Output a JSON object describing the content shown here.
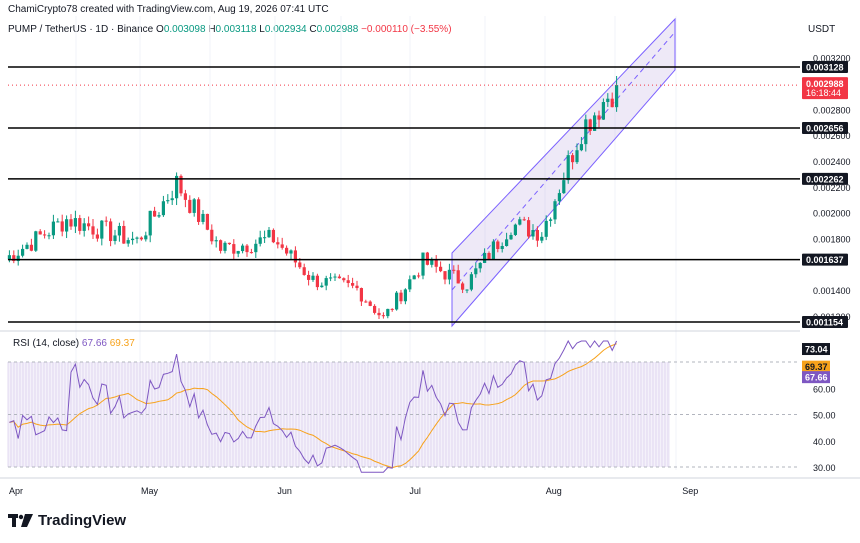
{
  "header": {
    "credit": "ChamiCrypto78 created with TradingView.com, Aug 19, 2026 07:41 UTC"
  },
  "symbol_line": {
    "name": "PUMP / TetherUS · 1D · Binance",
    "o_label": "O",
    "o": "0.003098",
    "h_label": "H",
    "h": "0.003118",
    "l_label": "L",
    "l": "0.002934",
    "c_label": "C",
    "c": "0.002988",
    "change": "−0.000110 (−3.55%)"
  },
  "currency": "USDT",
  "price_axis": {
    "ticks": [
      "0.003200",
      "0.002800",
      "0.002600",
      "0.002400",
      "0.002200",
      "0.002000",
      "0.001800",
      "0.001400",
      "0.001200"
    ],
    "levels": [
      "0.003128",
      "0.002656",
      "0.002262",
      "0.001637",
      "0.001154"
    ],
    "current_price": "0.002988",
    "countdown": "16:18:44"
  },
  "rsi_legend": {
    "label": "RSI (14, close)",
    "rsi": "67.66",
    "ma": "69.37"
  },
  "rsi_axis": {
    "ticks": [
      "60.00",
      "50.00",
      "40.00",
      "30.00"
    ],
    "badges": [
      "73.04",
      "69.37",
      "67.66"
    ]
  },
  "time_axis": [
    "Apr",
    "May",
    "Jun",
    "Jul",
    "Aug",
    "Sep"
  ],
  "logo": "TradingView",
  "colors": {
    "up": "#089981",
    "down": "#f23645",
    "channel": "#7b61ff",
    "rsi": "#7e57c2",
    "rsi_ma": "#f7a21b"
  },
  "chart_data": [
    {
      "type": "candlestick",
      "title": "PUMP / TetherUS · 1D · Binance",
      "x_start": "2025-04-01",
      "ylim": [
        0.00115,
        0.0033
      ],
      "x": [
        "2025-04-01",
        "2025-04-15",
        "2025-05-01",
        "2025-05-10",
        "2025-05-20",
        "2025-06-01",
        "2025-06-10",
        "2025-06-20",
        "2025-06-26",
        "2025-07-05",
        "2025-07-15",
        "2025-07-25",
        "2025-08-01",
        "2025-08-10",
        "2025-08-18"
      ],
      "close": [
        0.00164,
        0.00195,
        0.00178,
        0.00223,
        0.00172,
        0.0018,
        0.00148,
        0.00141,
        0.00118,
        0.00162,
        0.00145,
        0.00191,
        0.00185,
        0.00265,
        0.00299
      ],
      "horizontal_levels": [
        0.003128,
        0.002656,
        0.002262,
        0.001637,
        0.001154
      ],
      "ascending_channel": true
    },
    {
      "type": "line",
      "title": "RSI (14, close)",
      "ylim": [
        30,
        80
      ],
      "series": [
        {
          "name": "RSI",
          "last": 67.66
        },
        {
          "name": "MA",
          "last": 69.37
        }
      ]
    }
  ]
}
